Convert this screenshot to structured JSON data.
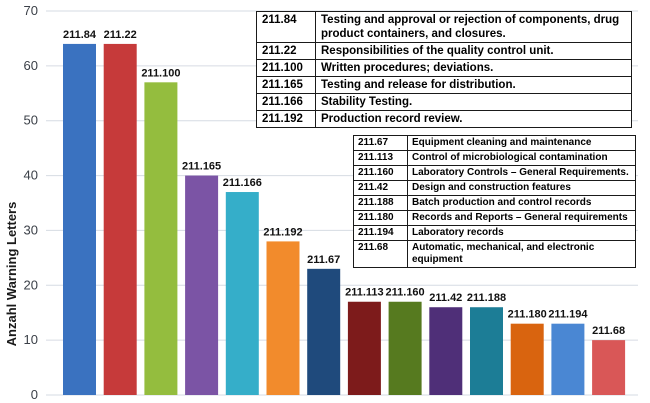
{
  "chart_data": {
    "type": "bar",
    "ylabel": "Anzahl Warning Letters",
    "ylim": [
      0,
      70
    ],
    "yticks": [
      0,
      10,
      20,
      30,
      40,
      50,
      60,
      70
    ],
    "grid": true,
    "categories": [
      "211.84",
      "211.22",
      "211.100",
      "211.165",
      "211.166",
      "211.192",
      "211.67",
      "211.113",
      "211.160",
      "211.42",
      "211.188",
      "211.180",
      "211.194",
      "211.68"
    ],
    "values": [
      64,
      64,
      57,
      40,
      37,
      28,
      23,
      17,
      17,
      16,
      16,
      13,
      13,
      10
    ],
    "colors": [
      "#3a72c0",
      "#c63a3a",
      "#94bd3e",
      "#7b54a5",
      "#35aec9",
      "#f28b2c",
      "#1f4a7c",
      "#7d1b1b",
      "#567a1f",
      "#4f2f78",
      "#1c7d96",
      "#d9640f",
      "#4a87d3",
      "#d95757"
    ]
  },
  "legend_main": [
    {
      "code": "211.84",
      "text": "Testing and approval or rejection of components, drug product containers, and closures."
    },
    {
      "code": "211.22",
      "text": "Responsibilities of the quality control unit."
    },
    {
      "code": "211.100",
      "text": "Written procedures; deviations."
    },
    {
      "code": "211.165",
      "text": "Testing and release for distribution."
    },
    {
      "code": "211.166",
      "text": "Stability Testing."
    },
    {
      "code": "211.192",
      "text": "Production record review."
    }
  ],
  "legend_secondary": [
    {
      "code": "211.67",
      "text": "Equipment cleaning and maintenance"
    },
    {
      "code": "211.113",
      "text": "Control of microbiological contamination"
    },
    {
      "code": "211.160",
      "text": "Laboratory Controls – General Requirements."
    },
    {
      "code": "211.42",
      "text": "Design and construction features"
    },
    {
      "code": "211.188",
      "text": "Batch production and control records"
    },
    {
      "code": "211.180",
      "text": "Records and Reports – General requirements"
    },
    {
      "code": "211.194",
      "text": "Laboratory records"
    },
    {
      "code": "211.68",
      "text": "Automatic, mechanical, and electronic equipment"
    }
  ]
}
